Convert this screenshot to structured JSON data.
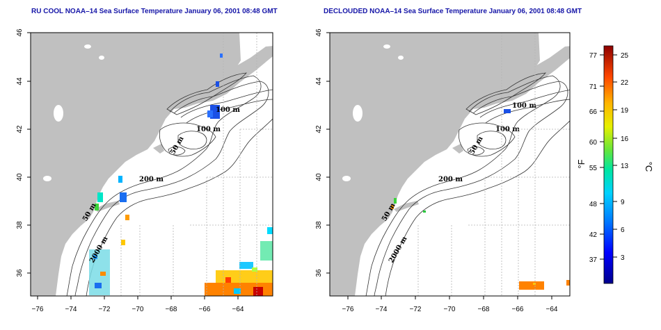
{
  "titles": {
    "left": "RU COOL NOAA–14 Sea Surface Temperature January 06, 2001 08:48 GMT",
    "right": "DECLOUDED NOAA–14 Sea Surface Temperature January 06, 2001 08:48 GMT"
  },
  "axes": {
    "lon_ticks": [
      "−76",
      "−74",
      "−72",
      "−70",
      "−68",
      "−66",
      "−64"
    ],
    "lat_ticks": [
      "36",
      "38",
      "40",
      "42",
      "44",
      "46"
    ]
  },
  "contour_labels": {
    "m100_a": "100 m",
    "m100_b": "100 m",
    "m50_a": "50 m",
    "m50_b": "50 m",
    "m200": "200 m",
    "m2000": "2000 m"
  },
  "colorbar": {
    "fahrenheit_label": "°F",
    "celsius_label": "°C",
    "fahrenheit_ticks": [
      "77",
      "71",
      "66",
      "60",
      "55",
      "48",
      "42",
      "37"
    ],
    "celsius_ticks": [
      "25",
      "22",
      "19",
      "16",
      "13",
      "9",
      "6",
      "3"
    ]
  },
  "colors": {
    "land": "#c0c0c0",
    "title": "#1616a8",
    "grid": "#b4b4b4"
  }
}
